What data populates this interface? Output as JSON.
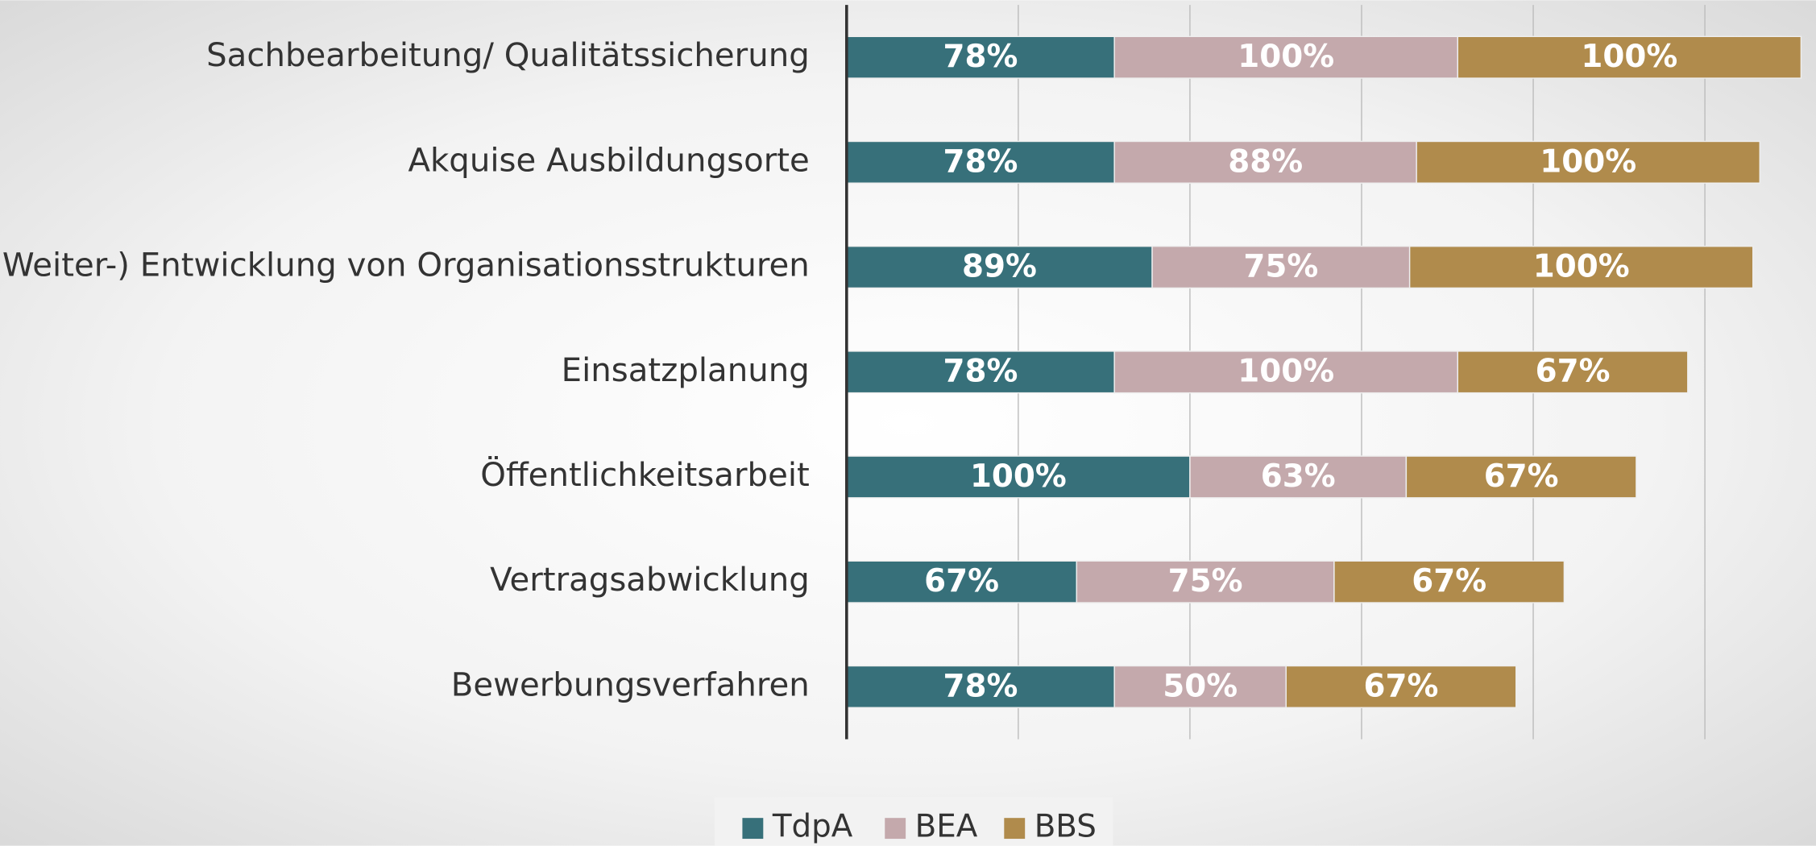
{
  "chart_data": {
    "type": "stacked_barh",
    "categories": [
      "Sachbearbeitung/ Qualitätssicherung",
      "Akquise Ausbildungsorte",
      "(Weiter-) Entwicklung von Organisationsstrukturen",
      "Einsatzplanung",
      "Öffentlichkeitsarbeit",
      "Vertragsabwicklung",
      "Bewerbungsverfahren"
    ],
    "series": [
      {
        "name": "TdpA",
        "color": "#37707a",
        "values": [
          78,
          78,
          89,
          78,
          100,
          67,
          78
        ],
        "value_labels": [
          "78%",
          "78%",
          "89%",
          "78%",
          "100%",
          "67%",
          "78%"
        ]
      },
      {
        "name": "BEA",
        "color": "#c4a9ac",
        "values": [
          100,
          88,
          75,
          100,
          63,
          75,
          50
        ],
        "value_labels": [
          "100%",
          "88%",
          "75%",
          "100%",
          "63%",
          "75%",
          "50%"
        ]
      },
      {
        "name": "BBS",
        "color": "#b08b4c",
        "values": [
          100,
          100,
          100,
          67,
          67,
          67,
          67
        ],
        "value_labels": [
          "100%",
          "100%",
          "100%",
          "67%",
          "67%",
          "67%",
          "67%"
        ]
      }
    ],
    "xlim": [
      0,
      280
    ],
    "xticks": [
      0,
      50,
      100,
      150,
      200,
      250
    ],
    "grid": true,
    "legend": "bottom"
  }
}
